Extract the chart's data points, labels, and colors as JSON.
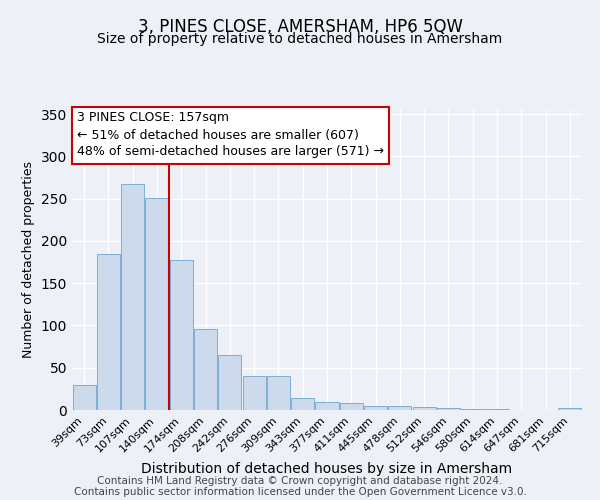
{
  "title": "3, PINES CLOSE, AMERSHAM, HP6 5QW",
  "subtitle": "Size of property relative to detached houses in Amersham",
  "xlabel": "Distribution of detached houses by size in Amersham",
  "ylabel": "Number of detached properties",
  "categories": [
    "39sqm",
    "73sqm",
    "107sqm",
    "140sqm",
    "174sqm",
    "208sqm",
    "242sqm",
    "276sqm",
    "309sqm",
    "343sqm",
    "377sqm",
    "411sqm",
    "445sqm",
    "478sqm",
    "512sqm",
    "546sqm",
    "580sqm",
    "614sqm",
    "647sqm",
    "681sqm",
    "715sqm"
  ],
  "values": [
    30,
    185,
    267,
    251,
    178,
    96,
    65,
    40,
    40,
    14,
    10,
    8,
    5,
    5,
    3,
    2,
    1,
    1,
    0,
    0,
    2
  ],
  "bar_color": "#cddaeb",
  "bar_edge_color": "#7aafd4",
  "vline_color": "#cc0000",
  "annotation_title": "3 PINES CLOSE: 157sqm",
  "annotation_line1": "← 51% of detached houses are smaller (607)",
  "annotation_line2": "48% of semi-detached houses are larger (571) →",
  "annotation_box_color": "#ffffff",
  "annotation_box_edge": "#cc0000",
  "ylim": [
    0,
    355
  ],
  "yticks": [
    0,
    50,
    100,
    150,
    200,
    250,
    300,
    350
  ],
  "footer1": "Contains HM Land Registry data © Crown copyright and database right 2024.",
  "footer2": "Contains public sector information licensed under the Open Government Licence v3.0.",
  "background_color": "#edf1f7",
  "grid_color": "#ffffff",
  "title_fontsize": 12,
  "subtitle_fontsize": 10,
  "xlabel_fontsize": 10,
  "ylabel_fontsize": 9,
  "tick_fontsize": 8,
  "annotation_fontsize": 9,
  "footer_fontsize": 7.5
}
